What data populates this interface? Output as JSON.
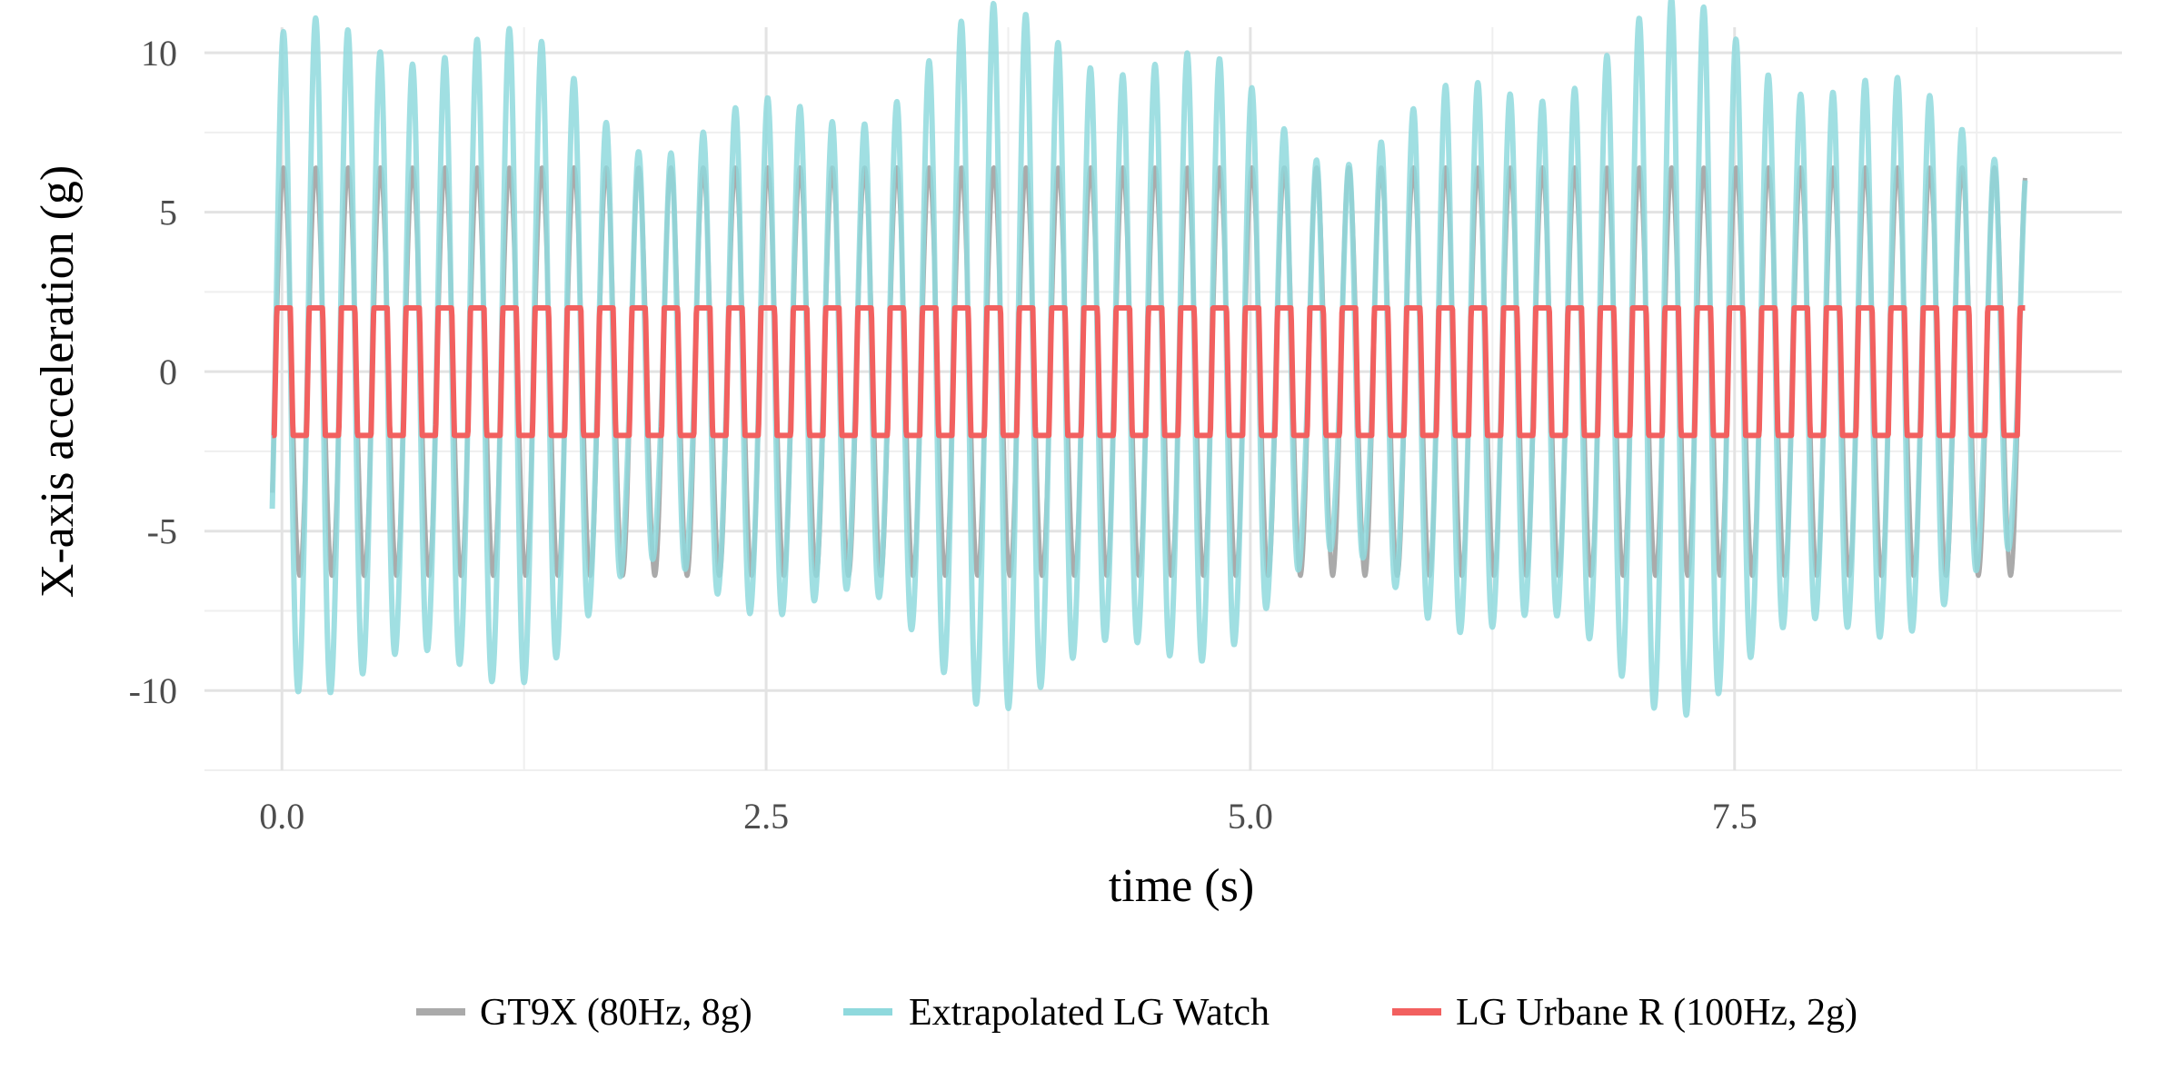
{
  "chart_data": {
    "type": "line",
    "title": "",
    "xlabel": "time (s)",
    "ylabel": "X-axis acceleration (g)",
    "xlim": [
      -0.4,
      9.5
    ],
    "ylim": [
      -12.5,
      10.8
    ],
    "x_ticks": [
      0.0,
      2.5,
      5.0,
      7.5
    ],
    "x_tick_labels": [
      "0.0",
      "2.5",
      "5.0",
      "7.5"
    ],
    "y_ticks": [
      -10,
      -5,
      0,
      5,
      10
    ],
    "y_tick_labels": [
      "-10",
      "-5",
      "0",
      "5",
      "10"
    ],
    "grid": true,
    "legend_position": "bottom",
    "x_start": -0.05,
    "x_end": 9.0,
    "series": [
      {
        "name": "GT9X (80Hz, 8g)",
        "color": "#aaaaaa",
        "description": "sinusoid, period ~0.167 s, amplitude ~6.4 g",
        "frequency_hz": 6.0,
        "amplitude": 6.4
      },
      {
        "name": "Extrapolated LG Watch",
        "color": "#8fd9dd",
        "description": "sinusoid, period ~0.167 s, amplitude varying ~5.5 to ~11.5 g",
        "frequency_hz": 6.0,
        "amplitude_min": 5.5,
        "amplitude_max": 11.5
      },
      {
        "name": "LG Urbane R (100Hz, 2g)",
        "color": "#f2605f",
        "description": "clipped square-like wave between -2 and 2 g",
        "frequency_hz": 6.0,
        "clip": 2.0
      }
    ]
  }
}
